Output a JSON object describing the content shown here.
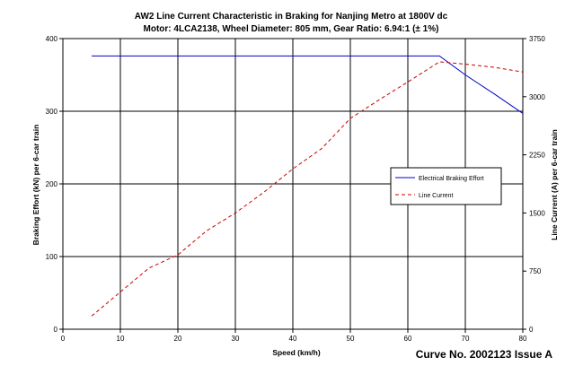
{
  "chart_data": {
    "type": "line",
    "title": "AW2 Line Current Characteristic in Braking for Nanjing Metro at 1800V dc",
    "subtitle": "Motor: 4LCA2138, Wheel Diameter: 805 mm, Gear Ratio: 6.94:1 (± 1%)",
    "xlabel": "Speed (km/h)",
    "ylabel_left": "Braking Effort (kN) per 6-car train",
    "ylabel_right": "Line Current (A) per 6-car train",
    "xlim": [
      0,
      80
    ],
    "ylim_left": [
      0,
      400
    ],
    "ylim_right": [
      0,
      3750
    ],
    "x_ticks": [
      "0",
      "10",
      "20",
      "30",
      "40",
      "50",
      "60",
      "70",
      "80"
    ],
    "y_left_ticks": [
      "0",
      "100",
      "200",
      "300",
      "400"
    ],
    "y_right_ticks": [
      "0",
      "750",
      "1500",
      "2250",
      "3000",
      "3750"
    ],
    "grid": true,
    "legend_position": "center-right",
    "series": [
      {
        "name": "Electrical Braking Effort",
        "axis": "left",
        "color": "#0000cc",
        "style": "solid",
        "x": [
          5,
          10,
          20,
          30,
          40,
          50,
          60,
          65.5,
          70,
          75,
          80
        ],
        "y": [
          376,
          376,
          376,
          376,
          376,
          376,
          376,
          376,
          350,
          324,
          297
        ]
      },
      {
        "name": "Line Current",
        "axis": "right",
        "color": "#cc0000",
        "style": "dashed",
        "x": [
          5,
          10,
          15,
          20,
          25,
          30,
          35,
          40,
          45,
          50,
          55,
          60,
          65.5,
          70,
          75,
          80
        ],
        "y": [
          170,
          480,
          790,
          960,
          1270,
          1500,
          1770,
          2070,
          2330,
          2720,
          2960,
          3190,
          3450,
          3420,
          3380,
          3320
        ]
      }
    ]
  },
  "footer": "Curve No. 2002123 Issue A"
}
